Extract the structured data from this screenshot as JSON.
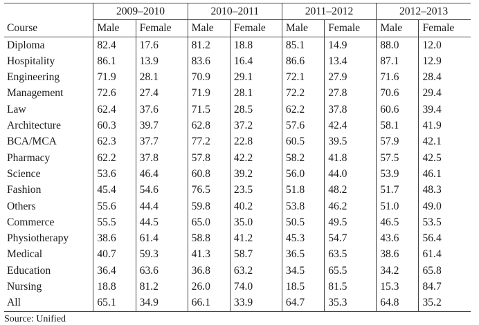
{
  "table": {
    "course_header": "Course",
    "years": [
      "2009–2010",
      "2010–2011",
      "2011–2012",
      "2012–2013"
    ],
    "male_label": "Male",
    "female_label": "Female",
    "rows": [
      {
        "course": "Diploma",
        "values": [
          "82.4",
          "17.6",
          "81.2",
          "18.8",
          "85.1",
          "14.9",
          "88.0",
          "12.0"
        ]
      },
      {
        "course": "Hospitality",
        "values": [
          "86.1",
          "13.9",
          "83.6",
          "16.4",
          "86.6",
          "13.4",
          "87.1",
          "12.9"
        ]
      },
      {
        "course": "Engineering",
        "values": [
          "71.9",
          "28.1",
          "70.9",
          "29.1",
          "72.1",
          "27.9",
          "71.6",
          "28.4"
        ]
      },
      {
        "course": "Management",
        "values": [
          "72.6",
          "27.4",
          "71.9",
          "28.1",
          "72.2",
          "27.8",
          "70.6",
          "29.4"
        ]
      },
      {
        "course": "Law",
        "values": [
          "62.4",
          "37.6",
          "71.5",
          "28.5",
          "62.2",
          "37.8",
          "60.6",
          "39.4"
        ]
      },
      {
        "course": "Architecture",
        "values": [
          "60.3",
          "39.7",
          "62.8",
          "37.2",
          "57.6",
          "42.4",
          "58.1",
          "41.9"
        ]
      },
      {
        "course": "BCA/MCA",
        "values": [
          "62.3",
          "37.7",
          "77.2",
          "22.8",
          "60.5",
          "39.5",
          "57.9",
          "42.1"
        ]
      },
      {
        "course": "Pharmacy",
        "values": [
          "62.2",
          "37.8",
          "57.8",
          "42.2",
          "58.2",
          "41.8",
          "57.5",
          "42.5"
        ]
      },
      {
        "course": "Science",
        "values": [
          "53.6",
          "46.4",
          "60.8",
          "39.2",
          "56.0",
          "44.0",
          "53.9",
          "46.1"
        ]
      },
      {
        "course": "Fashion",
        "values": [
          "45.4",
          "54.6",
          "76.5",
          "23.5",
          "51.8",
          "48.2",
          "51.7",
          "48.3"
        ]
      },
      {
        "course": "Others",
        "values": [
          "55.6",
          "44.4",
          "59.8",
          "40.2",
          "53.8",
          "46.2",
          "51.0",
          "49.0"
        ]
      },
      {
        "course": "Commerce",
        "values": [
          "55.5",
          "44.5",
          "65.0",
          "35.0",
          "50.5",
          "49.5",
          "46.5",
          "53.5"
        ]
      },
      {
        "course": "Physiotherapy",
        "values": [
          "38.6",
          "61.4",
          "58.8",
          "41.2",
          "45.3",
          "54.7",
          "43.6",
          "56.4"
        ]
      },
      {
        "course": "Medical",
        "values": [
          "40.7",
          "59.3",
          "41.3",
          "58.7",
          "36.5",
          "63.5",
          "38.6",
          "61.4"
        ]
      },
      {
        "course": "Education",
        "values": [
          "36.4",
          "63.6",
          "36.8",
          "63.2",
          "34.5",
          "65.5",
          "34.2",
          "65.8"
        ]
      },
      {
        "course": "Nursing",
        "values": [
          "18.8",
          "81.2",
          "26.0",
          "74.0",
          "18.5",
          "81.5",
          "15.3",
          "84.7"
        ]
      },
      {
        "course": "All",
        "values": [
          "65.1",
          "34.9",
          "66.1",
          "33.9",
          "64.7",
          "35.3",
          "64.8",
          "35.2"
        ]
      }
    ]
  },
  "footnote": "Source: Unified"
}
